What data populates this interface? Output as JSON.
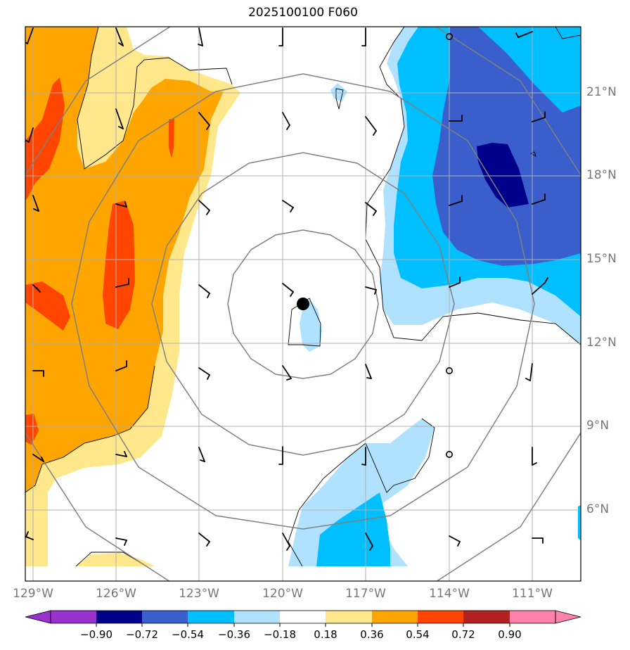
{
  "title": "2025100100 F060",
  "lat_labels": [
    "21°N",
    "18°N",
    "15°N",
    "12°N",
    "9°N",
    "6°N"
  ],
  "lon_labels": [
    "129°W",
    "126°W",
    "123°W",
    "120°W",
    "117°W",
    "114°W",
    "111°W"
  ],
  "colorbar": {
    "ticks": [
      "−0.90",
      "−0.72",
      "−0.54",
      "−0.36",
      "−0.18",
      "0.18",
      "0.36",
      "0.54",
      "0.72",
      "0.90"
    ],
    "colors": [
      "#9932cc",
      "#00008b",
      "#3a5fcd",
      "#00bfff",
      "#b0e2ff",
      "#ffffff",
      "#ffe88c",
      "#ffa500",
      "#ff4500",
      "#b22222",
      "#ff82ab"
    ]
  },
  "fill_colors": {
    "light_yellow": "#ffe88c",
    "orange": "#ffa500",
    "red_orange": "#ff4500",
    "light_blue": "#b0e2ff",
    "deep_sky_blue": "#00bfff",
    "royal_blue": "#3a5fcd",
    "navy": "#00008b"
  },
  "storm_center": {
    "lon": -119.3,
    "lat": 13.6
  }
}
